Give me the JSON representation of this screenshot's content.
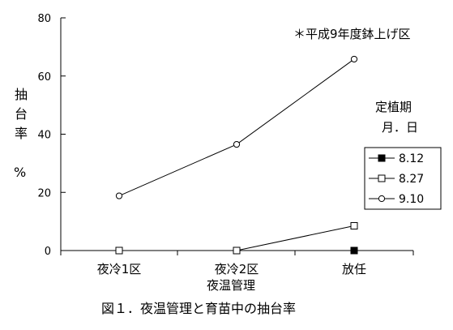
{
  "chart_data": {
    "type": "line",
    "title": "図１．夜温管理と育苗中の抽台率",
    "subtitle": "＊平成9年度鉢上げ区",
    "xlabel": "夜温管理",
    "ylabel_chars": [
      "抽",
      "台",
      "率"
    ],
    "yunit": "%",
    "categories": [
      "夜冷1区",
      "夜冷2区",
      "放任"
    ],
    "ylim": [
      0,
      80
    ],
    "yticks": [
      "0",
      "20",
      "40",
      "60",
      "80"
    ],
    "grid": false,
    "legend_title_line1": "定植期",
    "legend_title_line2": "月．日",
    "legend_position": "right",
    "series": [
      {
        "name": "8.12",
        "marker": "filled-square",
        "values": [
          0,
          0,
          0
        ]
      },
      {
        "name": "8.27",
        "marker": "open-square",
        "values": [
          0,
          0,
          8.5
        ]
      },
      {
        "name": "9.10",
        "marker": "open-circle",
        "values": [
          18.8,
          36.5,
          65.8
        ]
      }
    ]
  }
}
